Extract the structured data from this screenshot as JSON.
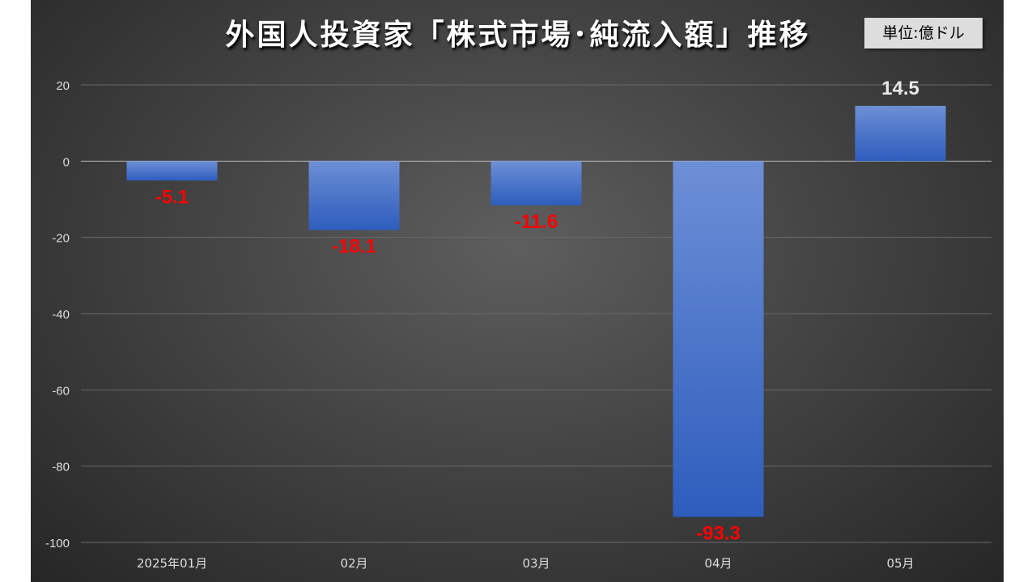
{
  "chart_data": {
    "type": "bar",
    "title": "外国人投資家「株式市場･純流入額」推移",
    "unit_label": "単位:億ドル",
    "categories": [
      "2025年01月",
      "02月",
      "03月",
      "04月",
      "05月"
    ],
    "values": [
      -5.1,
      -18.1,
      -11.6,
      -93.3,
      14.5
    ],
    "data_labels": [
      "-5.1",
      "-18.1",
      "-11.6",
      "-93.3",
      "14.5"
    ],
    "ylim": [
      -100,
      20
    ],
    "yticks": [
      20,
      0,
      -20,
      -40,
      -60,
      -80,
      -100
    ],
    "grid": true,
    "colors": {
      "bar_top": "#6d8fd6",
      "bar_bottom": "#2e5dbd",
      "negative_label": "#ff0000",
      "positive_label": "#e8e8e8",
      "background": "#444444"
    }
  }
}
